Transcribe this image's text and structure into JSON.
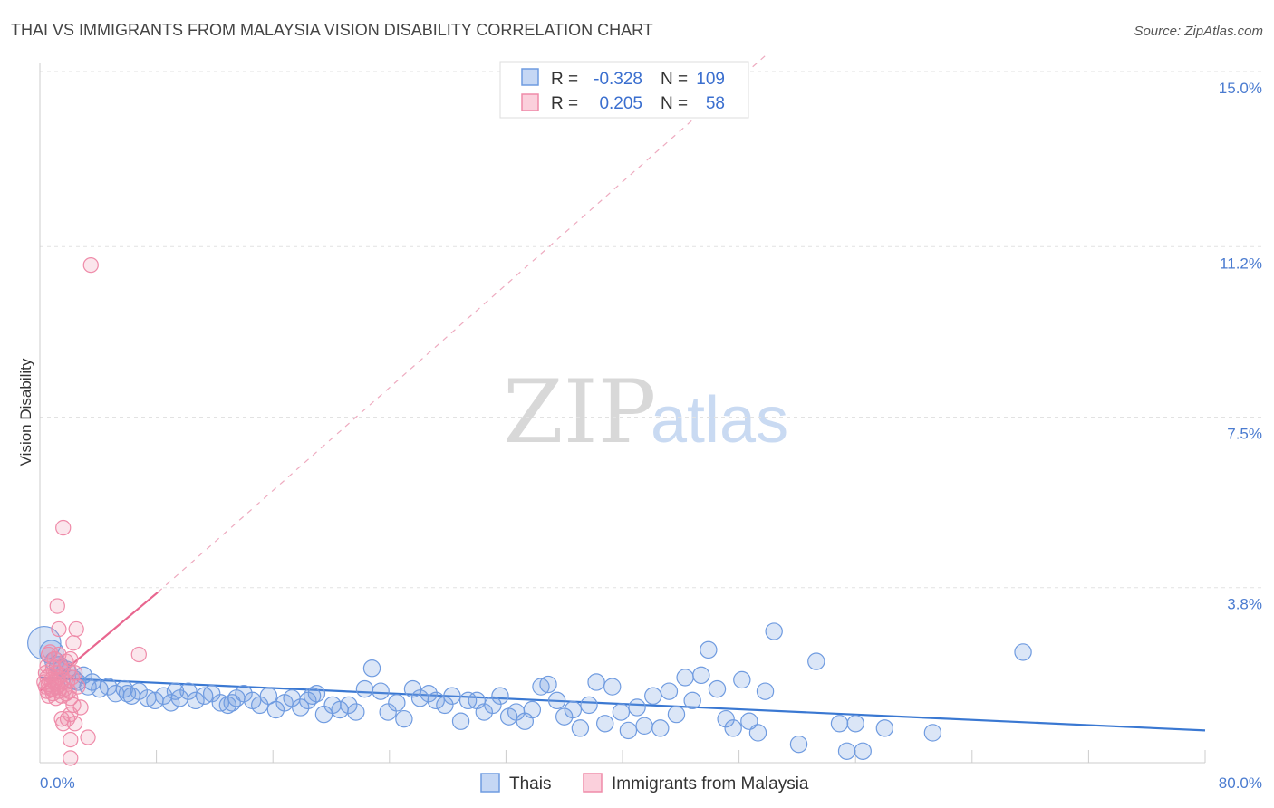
{
  "chart_data": {
    "type": "scatter",
    "title": "THAI VS IMMIGRANTS FROM MALAYSIA VISION DISABILITY CORRELATION CHART",
    "source": "Source: ZipAtlas.com",
    "ylabel": "Vision Disability",
    "xlim": [
      0,
      80
    ],
    "ylim": [
      0,
      15.5
    ],
    "x_tick_labels": [
      "0.0%",
      "80.0%"
    ],
    "y_ticks": [
      {
        "value": 3.8,
        "label": "3.8%"
      },
      {
        "value": 7.5,
        "label": "7.5%"
      },
      {
        "value": 11.2,
        "label": "11.2%"
      },
      {
        "value": 15.0,
        "label": "15.0%"
      }
    ],
    "legend_stats": [
      {
        "r_label": "R =",
        "r_value": "-0.328",
        "n_label": "N =",
        "n_value": "109",
        "color": "#6f9be0"
      },
      {
        "r_label": "R =",
        "r_value": "0.205",
        "n_label": "N =",
        "n_value": "58",
        "color": "#ef8ba9"
      }
    ],
    "series": [
      {
        "name": "Thais",
        "color": "#6f9be0",
        "trend": {
          "x0": 0,
          "y0": 1.85,
          "x1": 80,
          "y1": 0.7
        },
        "points": [
          [
            0.3,
            2.6,
            14
          ],
          [
            0.8,
            2.4,
            10
          ],
          [
            1.0,
            2.2,
            8
          ],
          [
            1.3,
            2.1,
            8
          ],
          [
            1.8,
            2.0,
            8
          ],
          [
            2.3,
            1.8,
            8
          ],
          [
            3.0,
            1.9,
            7
          ],
          [
            3.6,
            1.75,
            7
          ],
          [
            4.1,
            1.6,
            7
          ],
          [
            4.7,
            1.65,
            7
          ],
          [
            5.2,
            1.5,
            7
          ],
          [
            5.8,
            1.6,
            7
          ],
          [
            6.3,
            1.45,
            7
          ],
          [
            6.8,
            1.55,
            7
          ],
          [
            7.4,
            1.4,
            7
          ],
          [
            7.9,
            1.35,
            7
          ],
          [
            8.5,
            1.45,
            7
          ],
          [
            9.0,
            1.3,
            7
          ],
          [
            9.6,
            1.4,
            7
          ],
          [
            10.2,
            1.55,
            7
          ],
          [
            10.7,
            1.35,
            7
          ],
          [
            11.3,
            1.45,
            7
          ],
          [
            11.8,
            1.5,
            7
          ],
          [
            12.4,
            1.3,
            7
          ],
          [
            12.9,
            1.25,
            7
          ],
          [
            13.5,
            1.4,
            7
          ],
          [
            14.0,
            1.5,
            7
          ],
          [
            14.6,
            1.35,
            7
          ],
          [
            15.1,
            1.25,
            7
          ],
          [
            15.7,
            1.45,
            7
          ],
          [
            16.2,
            1.15,
            7
          ],
          [
            16.8,
            1.3,
            7
          ],
          [
            17.3,
            1.4,
            7
          ],
          [
            17.9,
            1.2,
            7
          ],
          [
            18.4,
            1.35,
            7
          ],
          [
            19.0,
            1.5,
            7
          ],
          [
            19.5,
            1.05,
            7
          ],
          [
            20.1,
            1.25,
            7
          ],
          [
            20.6,
            1.15,
            7
          ],
          [
            21.2,
            1.25,
            7
          ],
          [
            21.7,
            1.1,
            7
          ],
          [
            22.3,
            1.6,
            7
          ],
          [
            22.8,
            2.05,
            7
          ],
          [
            23.4,
            1.55,
            7
          ],
          [
            23.9,
            1.1,
            7
          ],
          [
            24.5,
            1.3,
            7
          ],
          [
            25.0,
            0.95,
            7
          ],
          [
            25.6,
            1.6,
            7
          ],
          [
            26.1,
            1.4,
            7
          ],
          [
            26.7,
            1.5,
            7
          ],
          [
            27.2,
            1.35,
            7
          ],
          [
            27.8,
            1.25,
            7
          ],
          [
            28.3,
            1.45,
            7
          ],
          [
            28.9,
            0.9,
            7
          ],
          [
            29.4,
            1.35,
            7
          ],
          [
            30.0,
            1.35,
            7
          ],
          [
            30.5,
            1.1,
            7
          ],
          [
            31.1,
            1.25,
            7
          ],
          [
            31.6,
            1.45,
            7
          ],
          [
            32.2,
            1.0,
            7
          ],
          [
            32.7,
            1.1,
            7
          ],
          [
            33.3,
            0.9,
            7
          ],
          [
            33.8,
            1.15,
            7
          ],
          [
            34.4,
            1.65,
            7
          ],
          [
            34.9,
            1.7,
            7
          ],
          [
            35.5,
            1.35,
            7
          ],
          [
            36.0,
            1.0,
            7
          ],
          [
            36.6,
            1.15,
            7
          ],
          [
            37.1,
            0.75,
            7
          ],
          [
            37.7,
            1.25,
            7
          ],
          [
            38.2,
            1.75,
            7
          ],
          [
            38.8,
            0.85,
            7
          ],
          [
            39.3,
            1.65,
            7
          ],
          [
            39.9,
            1.1,
            7
          ],
          [
            40.4,
            0.7,
            7
          ],
          [
            41.0,
            1.2,
            7
          ],
          [
            41.5,
            0.8,
            7
          ],
          [
            42.1,
            1.45,
            7
          ],
          [
            42.6,
            0.75,
            7
          ],
          [
            43.2,
            1.55,
            7
          ],
          [
            43.7,
            1.05,
            7
          ],
          [
            44.3,
            1.85,
            7
          ],
          [
            44.8,
            1.35,
            7
          ],
          [
            45.4,
            1.9,
            7
          ],
          [
            45.9,
            2.45,
            7
          ],
          [
            46.5,
            1.6,
            7
          ],
          [
            47.1,
            0.95,
            7
          ],
          [
            47.6,
            0.75,
            7
          ],
          [
            48.2,
            1.8,
            7
          ],
          [
            48.7,
            0.9,
            7
          ],
          [
            49.3,
            0.65,
            7
          ],
          [
            49.8,
            1.55,
            7
          ],
          [
            50.4,
            2.85,
            7
          ],
          [
            52.1,
            0.4,
            7
          ],
          [
            53.3,
            2.2,
            7
          ],
          [
            54.9,
            0.85,
            7
          ],
          [
            55.4,
            0.25,
            7
          ],
          [
            56.0,
            0.85,
            7
          ],
          [
            56.5,
            0.25,
            7
          ],
          [
            58.0,
            0.75,
            7
          ],
          [
            67.5,
            2.4,
            7
          ],
          [
            61.3,
            0.65,
            7
          ],
          [
            1.5,
            2.05,
            7
          ],
          [
            2.6,
            1.75,
            7
          ],
          [
            3.3,
            1.65,
            7
          ],
          [
            6.0,
            1.5,
            7
          ],
          [
            9.3,
            1.55,
            7
          ],
          [
            13.2,
            1.3,
            7
          ],
          [
            18.7,
            1.45,
            7
          ]
        ]
      },
      {
        "name": "Immigrants from Malaysia",
        "color": "#ef8ba9",
        "trend": {
          "x0": 0,
          "y0": 1.55,
          "x1": 8.1,
          "y1": 3.7
        },
        "trend_extended": {
          "x0": 8.1,
          "y0": 3.7,
          "x1": 50,
          "y1": 15.4
        },
        "points": [
          [
            3.5,
            10.8,
            7
          ],
          [
            1.6,
            5.1,
            7
          ],
          [
            1.2,
            3.4,
            7
          ],
          [
            2.5,
            2.9,
            7
          ],
          [
            1.3,
            2.9,
            7
          ],
          [
            2.3,
            2.6,
            7
          ],
          [
            6.8,
            2.35,
            7
          ],
          [
            0.6,
            2.35,
            7
          ],
          [
            1.0,
            2.25,
            7
          ],
          [
            1.8,
            2.2,
            7
          ],
          [
            2.1,
            2.25,
            7
          ],
          [
            0.5,
            2.1,
            7
          ],
          [
            0.9,
            2.05,
            7
          ],
          [
            1.4,
            2.1,
            7
          ],
          [
            2.0,
            2.0,
            7
          ],
          [
            0.4,
            1.95,
            7
          ],
          [
            0.7,
            1.9,
            7
          ],
          [
            1.1,
            1.95,
            7
          ],
          [
            1.5,
            1.9,
            7
          ],
          [
            2.4,
            1.95,
            7
          ],
          [
            0.5,
            1.85,
            7
          ],
          [
            0.8,
            1.8,
            7
          ],
          [
            1.2,
            1.85,
            7
          ],
          [
            1.6,
            1.8,
            7
          ],
          [
            2.2,
            1.85,
            7
          ],
          [
            0.3,
            1.75,
            7
          ],
          [
            0.6,
            1.7,
            7
          ],
          [
            1.0,
            1.75,
            7
          ],
          [
            1.4,
            1.7,
            7
          ],
          [
            1.9,
            1.75,
            7
          ],
          [
            0.4,
            1.65,
            7
          ],
          [
            0.8,
            1.6,
            7
          ],
          [
            1.2,
            1.65,
            7
          ],
          [
            1.7,
            1.6,
            7
          ],
          [
            2.6,
            1.65,
            7
          ],
          [
            0.5,
            1.55,
            7
          ],
          [
            0.9,
            1.5,
            7
          ],
          [
            1.3,
            1.55,
            7
          ],
          [
            1.8,
            1.5,
            7
          ],
          [
            0.6,
            1.45,
            7
          ],
          [
            1.1,
            1.4,
            7
          ],
          [
            1.5,
            1.45,
            7
          ],
          [
            2.1,
            1.4,
            7
          ],
          [
            2.3,
            1.25,
            7
          ],
          [
            2.1,
            1.05,
            7
          ],
          [
            1.9,
            0.95,
            7
          ],
          [
            1.5,
            0.95,
            7
          ],
          [
            1.6,
            0.85,
            7
          ],
          [
            2.4,
            0.85,
            7
          ],
          [
            3.3,
            0.55,
            7
          ],
          [
            2.1,
            0.5,
            7
          ],
          [
            2.1,
            0.1,
            7
          ],
          [
            0.7,
            2.4,
            7
          ],
          [
            1.3,
            2.35,
            7
          ],
          [
            2.8,
            1.2,
            7
          ],
          [
            2.0,
            1.55,
            7
          ],
          [
            1.1,
            1.8,
            7
          ],
          [
            0.9,
            1.6,
            7
          ]
        ]
      }
    ]
  }
}
